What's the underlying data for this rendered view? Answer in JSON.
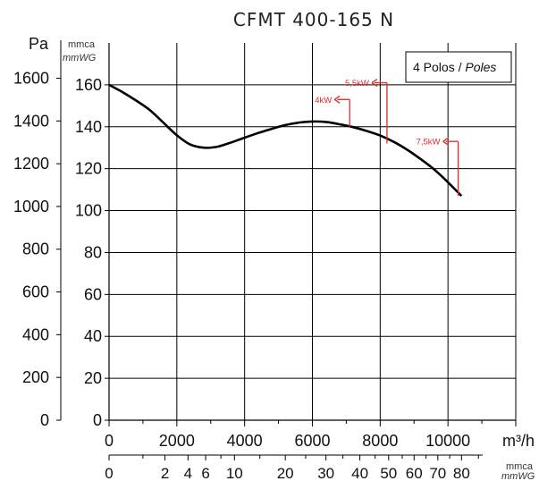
{
  "chart_data": {
    "type": "line",
    "title": "CFMT 400-165 N",
    "legend": {
      "text_regular": "4 Polos / ",
      "text_italic": "Poles",
      "placement": "top-right"
    },
    "x_axis": {
      "unit": "m³/h",
      "range": [
        0,
        12000
      ],
      "ticks": [
        0,
        2000,
        4000,
        6000,
        8000,
        10000
      ],
      "grid_lines": [
        2000,
        4000,
        6000,
        8000,
        10000,
        12000
      ]
    },
    "x2_axis": {
      "unit_regular": "mmca",
      "unit_italic": "mmWG",
      "ticks": [
        {
          "label": "0",
          "x": 0
        },
        {
          "label": "2",
          "x": 1650
        },
        {
          "label": "4",
          "x": 2330
        },
        {
          "label": "6",
          "x": 2850
        },
        {
          "label": "10",
          "x": 3700
        },
        {
          "label": "20",
          "x": 5200
        },
        {
          "label": "30",
          "x": 6400
        },
        {
          "label": "40",
          "x": 7400
        },
        {
          "label": "50",
          "x": 8250
        },
        {
          "label": "60",
          "x": 9000
        },
        {
          "label": "70",
          "x": 9700
        },
        {
          "label": "80",
          "x": 10400
        }
      ]
    },
    "y_axis_left": {
      "unit": "Pa",
      "ticks": [
        0,
        200,
        400,
        600,
        800,
        1000,
        1200,
        1400,
        1600
      ]
    },
    "y_axis_right": {
      "unit_regular": "mmca",
      "unit_italic": "mmWG",
      "range": [
        0,
        180
      ],
      "ticks": [
        0,
        20,
        40,
        60,
        80,
        100,
        120,
        140,
        160
      ]
    },
    "grid": true,
    "series": [
      {
        "name": "",
        "x": [
          0,
          400,
          800,
          1200,
          1600,
          2000,
          2400,
          2800,
          3200,
          3600,
          4000,
          4400,
          4800,
          5200,
          5600,
          6000,
          6400,
          6800,
          7200,
          7600,
          8000,
          8400,
          8800,
          9200,
          9600,
          10000,
          10400
        ],
        "y": [
          160,
          156.5,
          152.5,
          148,
          142,
          136,
          131.5,
          130,
          130.5,
          132.5,
          134.8,
          137,
          139,
          140.8,
          142,
          142.5,
          142.3,
          141.2,
          139.8,
          138,
          135.8,
          132.8,
          129,
          124.5,
          119.5,
          113.5,
          107
        ]
      }
    ],
    "annotations": [
      {
        "label": "5,5kW",
        "x": 8200,
        "y_top": 161,
        "y_bottom": 132
      },
      {
        "label": "4kW",
        "x": 7100,
        "y_top": 153,
        "y_bottom": 140
      },
      {
        "label": "7,5kW",
        "x": 10300,
        "y_top": 133,
        "y_bottom": 107
      }
    ]
  }
}
